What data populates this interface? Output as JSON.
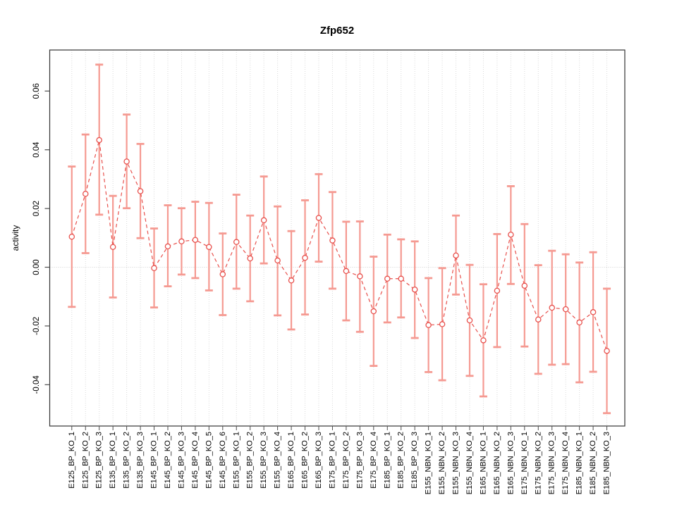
{
  "chart_data": {
    "type": "line",
    "subtype": "points-with-error-bars",
    "title": "Zfp652",
    "xlabel": "",
    "ylabel": "activity",
    "legend": "none",
    "grid": "vertical dotted line at every category; horizontal dotted line at 0",
    "marker": "open-circle",
    "line_style": "dashed",
    "ylim": [
      -0.0545,
      0.0738
    ],
    "yticks": [
      "0.06",
      "0.04",
      "0.02",
      "0.00",
      "-0.02",
      "-0.04"
    ],
    "ytick_values": [
      0.06,
      0.04,
      0.02,
      0.0,
      -0.02,
      -0.04
    ],
    "categories": [
      "E125_BP_KO_1",
      "E125_BP_KO_2",
      "E125_BP_KO_3",
      "E135_BP_KO_1",
      "E135_BP_KO_2",
      "E135_BP_KO_3",
      "E145_BP_KO_1",
      "E145_BP_KO_2",
      "E145_BP_KO_3",
      "E145_BP_KO_4",
      "E145_BP_KO_5",
      "E145_BP_KO_6",
      "E155_BP_KO_1",
      "E155_BP_KO_2",
      "E155_BP_KO_3",
      "E155_BP_KO_4",
      "E165_BP_KO_1",
      "E165_BP_KO_2",
      "E165_BP_KO_3",
      "E175_BP_KO_1",
      "E175_BP_KO_2",
      "E175_BP_KO_3",
      "E175_BP_KO_4",
      "E185_BP_KO_1",
      "E185_BP_KO_2",
      "E185_BP_KO_3",
      "E155_NBN_KO_1",
      "E155_NBN_KO_2",
      "E155_NBN_KO_3",
      "E155_NBN_KO_4",
      "E165_NBN_KO_1",
      "E165_NBN_KO_2",
      "E165_NBN_KO_3",
      "E175_NBN_KO_1",
      "E175_NBN_KO_2",
      "E175_NBN_KO_3",
      "E175_NBN_KO_4",
      "E185_NBN_KO_1",
      "E185_NBN_KO_2",
      "E185_NBN_KO_3"
    ],
    "series": [
      {
        "name": "activity",
        "values": [
          0.0104,
          0.025,
          0.0433,
          0.0069,
          0.036,
          0.0259,
          -0.0003,
          0.0071,
          0.0088,
          0.0093,
          0.0069,
          -0.0024,
          0.0086,
          0.003,
          0.016,
          0.0023,
          -0.0045,
          0.0032,
          0.0168,
          0.0091,
          -0.0013,
          -0.0031,
          -0.015,
          -0.0039,
          -0.0039,
          -0.0076,
          -0.0197,
          -0.0194,
          0.004,
          -0.0181,
          -0.0249,
          -0.008,
          0.0111,
          -0.0063,
          -0.0178,
          -0.0138,
          -0.0143,
          -0.0188,
          -0.0153,
          -0.0285
        ],
        "upper": [
          0.0343,
          0.0452,
          0.069,
          0.0243,
          0.052,
          0.042,
          0.0132,
          0.0211,
          0.0201,
          0.0223,
          0.0219,
          0.0115,
          0.0247,
          0.0176,
          0.0309,
          0.0207,
          0.0123,
          0.0228,
          0.0317,
          0.0256,
          0.0155,
          0.0156,
          0.0036,
          0.0111,
          0.0095,
          0.0088,
          -0.0037,
          -0.0003,
          0.0176,
          0.0008,
          -0.0058,
          0.0113,
          0.0276,
          0.0147,
          0.0007,
          0.0056,
          0.0044,
          0.0016,
          0.0051,
          -0.0073
        ],
        "lower": [
          -0.0135,
          0.0048,
          0.0179,
          -0.0103,
          0.0201,
          0.0099,
          -0.0137,
          -0.0065,
          -0.0025,
          -0.0037,
          -0.0079,
          -0.0163,
          -0.0073,
          -0.0116,
          0.0013,
          -0.0164,
          -0.0212,
          -0.0161,
          0.0019,
          -0.0073,
          -0.0181,
          -0.022,
          -0.0336,
          -0.0188,
          -0.0171,
          -0.0241,
          -0.0357,
          -0.0385,
          -0.0093,
          -0.037,
          -0.044,
          -0.0272,
          -0.0057,
          -0.027,
          -0.0363,
          -0.0332,
          -0.033,
          -0.0392,
          -0.0356,
          -0.0497
        ]
      }
    ],
    "colors": {
      "point": "#e8514d",
      "line": "#e8514d",
      "error_bar": "#f59a92",
      "grid": "#dadada",
      "zero_line": "#d2d2d2",
      "axis_box": "#333333",
      "tick": "#4d4d4d",
      "text": "#000000"
    }
  }
}
